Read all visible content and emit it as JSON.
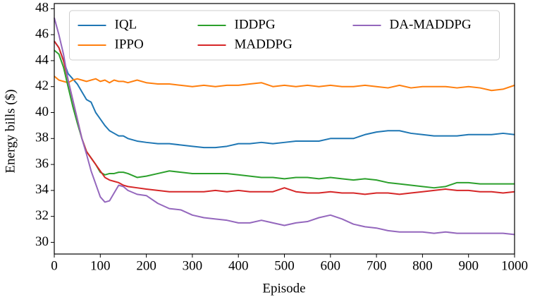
{
  "chart_data": {
    "type": "line",
    "xlabel": "Episode",
    "ylabel": "Energy bills ($)",
    "x": [
      0,
      10,
      20,
      30,
      40,
      50,
      60,
      70,
      80,
      90,
      100,
      110,
      120,
      130,
      140,
      150,
      160,
      180,
      200,
      225,
      250,
      275,
      300,
      325,
      350,
      375,
      400,
      425,
      450,
      475,
      500,
      525,
      550,
      575,
      600,
      625,
      650,
      675,
      700,
      725,
      750,
      775,
      800,
      825,
      850,
      875,
      900,
      925,
      950,
      975,
      1000
    ],
    "series": [
      {
        "name": "IQL",
        "color": "#1f77b4",
        "values": [
          45.5,
          45,
          44,
          43,
          42.6,
          42.2,
          41.6,
          41,
          40.8,
          40,
          39.5,
          39,
          38.6,
          38.4,
          38.2,
          38.2,
          38,
          37.8,
          37.7,
          37.6,
          37.6,
          37.5,
          37.4,
          37.3,
          37.3,
          37.4,
          37.6,
          37.6,
          37.7,
          37.6,
          37.7,
          37.8,
          37.8,
          37.8,
          38,
          38,
          38,
          38.3,
          38.5,
          38.6,
          38.6,
          38.4,
          38.3,
          38.2,
          38.2,
          38.2,
          38.3,
          38.3,
          38.3,
          38.4,
          38.3
        ]
      },
      {
        "name": "IPPO",
        "color": "#ff7f0e",
        "values": [
          42.8,
          42.5,
          42.4,
          42.3,
          42.5,
          42.6,
          42.5,
          42.4,
          42.5,
          42.6,
          42.4,
          42.5,
          42.3,
          42.5,
          42.4,
          42.4,
          42.3,
          42.5,
          42.3,
          42.2,
          42.2,
          42.1,
          42,
          42.1,
          42,
          42.1,
          42.1,
          42.2,
          42.3,
          42,
          42.1,
          42,
          42.1,
          42,
          42.1,
          42,
          42,
          42.1,
          42,
          41.9,
          42.1,
          41.9,
          42,
          42,
          42,
          41.9,
          42,
          41.9,
          41.7,
          41.8,
          42.1
        ]
      },
      {
        "name": "IDDPG",
        "color": "#2ca02c",
        "values": [
          44.8,
          44.5,
          43.5,
          42,
          40.5,
          39.2,
          38,
          37,
          36.5,
          36,
          35.4,
          35.2,
          35.3,
          35.3,
          35.4,
          35.4,
          35.3,
          35,
          35.1,
          35.3,
          35.5,
          35.4,
          35.3,
          35.3,
          35.3,
          35.3,
          35.2,
          35.1,
          35,
          35,
          34.9,
          35,
          35,
          34.9,
          35,
          34.9,
          34.8,
          34.9,
          34.8,
          34.6,
          34.5,
          34.4,
          34.3,
          34.2,
          34.3,
          34.6,
          34.6,
          34.5,
          34.5,
          34.5,
          34.5
        ]
      },
      {
        "name": "MADDPG",
        "color": "#d62728",
        "values": [
          45.5,
          45,
          44,
          42.5,
          41,
          39.5,
          38,
          37,
          36.5,
          36,
          35.5,
          35,
          34.8,
          34.7,
          34.6,
          34.4,
          34.3,
          34.2,
          34.1,
          34,
          33.9,
          33.9,
          33.9,
          33.9,
          34,
          33.9,
          34,
          33.9,
          33.9,
          33.9,
          34.2,
          33.9,
          33.8,
          33.8,
          33.9,
          33.8,
          33.8,
          33.7,
          33.8,
          33.8,
          33.7,
          33.8,
          33.9,
          34,
          34.1,
          34,
          34,
          33.9,
          33.9,
          33.8,
          33.9
        ]
      },
      {
        "name": "DA-MADDPG",
        "color": "#9467bd",
        "values": [
          47.3,
          46,
          44.5,
          42.5,
          41,
          39.5,
          38,
          36.8,
          35.5,
          34.5,
          33.5,
          33.1,
          33.2,
          33.8,
          34.4,
          34.3,
          34,
          33.7,
          33.6,
          33,
          32.6,
          32.5,
          32.1,
          31.9,
          31.8,
          31.7,
          31.5,
          31.5,
          31.7,
          31.5,
          31.3,
          31.5,
          31.6,
          31.9,
          32.1,
          31.8,
          31.4,
          31.2,
          31.1,
          30.9,
          30.8,
          30.8,
          30.8,
          30.7,
          30.8,
          30.7,
          30.7,
          30.7,
          30.7,
          30.7,
          30.6
        ]
      }
    ],
    "xlim": [
      0,
      1000
    ],
    "xticks": [
      0,
      100,
      200,
      300,
      400,
      500,
      600,
      700,
      800,
      900,
      1000
    ],
    "ylim": [
      29.1,
      48.4
    ],
    "yticks": [
      30,
      32,
      34,
      36,
      38,
      40,
      42,
      44,
      46,
      48
    ],
    "legend": "upper center",
    "legend_columns": 3,
    "grid": false
  }
}
